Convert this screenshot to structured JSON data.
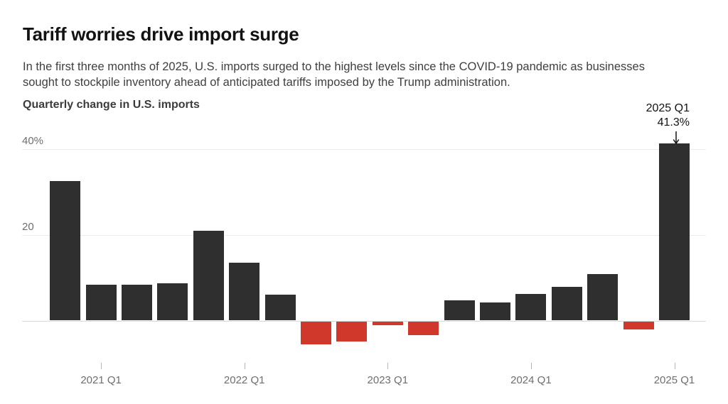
{
  "header": {
    "title": "Tariff worries drive import surge",
    "subtitle_lines": [
      "In the first three months of 2025, U.S. imports surged to the highest levels since the COVID-19 pandemic as businesses",
      "sought to stockpile inventory ahead of anticipated tariffs imposed by the Trump administration."
    ]
  },
  "colors": {
    "title": "#121212",
    "subtitle": "#3f3f3f",
    "positive_bar": "#2f2f2f",
    "negative_bar": "#d0382c",
    "grid": "#ededed",
    "zero_line": "#d9d9d9",
    "axis_text": "#6e6e6e"
  },
  "annotation": {
    "lines": [
      "2025 Q1",
      "41.3%"
    ],
    "arrow_icon": "arrow-down",
    "points_to": "2025 Q1"
  },
  "chart_data": {
    "type": "bar",
    "title": "Quarterly change in U.S. imports",
    "unit": "percent",
    "categories": [
      "2020 Q4",
      "2021 Q1",
      "2021 Q2",
      "2021 Q3",
      "2021 Q4",
      "2022 Q1",
      "2022 Q2",
      "2022 Q3",
      "2022 Q4",
      "2023 Q1",
      "2023 Q2",
      "2023 Q3",
      "2023 Q4",
      "2024 Q1",
      "2024 Q2",
      "2024 Q3",
      "2024 Q4",
      "2025 Q1"
    ],
    "values": [
      32.4,
      8.3,
      8.4,
      8.7,
      20.9,
      13.4,
      6.0,
      -5.3,
      -4.6,
      -0.8,
      -3.2,
      4.7,
      4.2,
      6.2,
      7.8,
      10.8,
      -1.8,
      41.3
    ],
    "y_ticks": [
      {
        "value": 40,
        "label": "40%"
      },
      {
        "value": 20,
        "label": "20"
      }
    ],
    "x_ticks": [
      {
        "category_index": 1,
        "label": "2021 Q1"
      },
      {
        "category_index": 5,
        "label": "2022 Q1"
      },
      {
        "category_index": 9,
        "label": "2023 Q1"
      },
      {
        "category_index": 13,
        "label": "2024 Q1"
      },
      {
        "category_index": 17,
        "label": "2025 Q1"
      }
    ],
    "ylim": [
      -6.5,
      43
    ],
    "grid": true,
    "legend": "none",
    "highlight_label": {
      "lines": [
        "2025 Q1",
        "41.3%"
      ],
      "target": "2025 Q1"
    },
    "positive_color": "#2f2f2f",
    "negative_color": "#d0382c"
  }
}
